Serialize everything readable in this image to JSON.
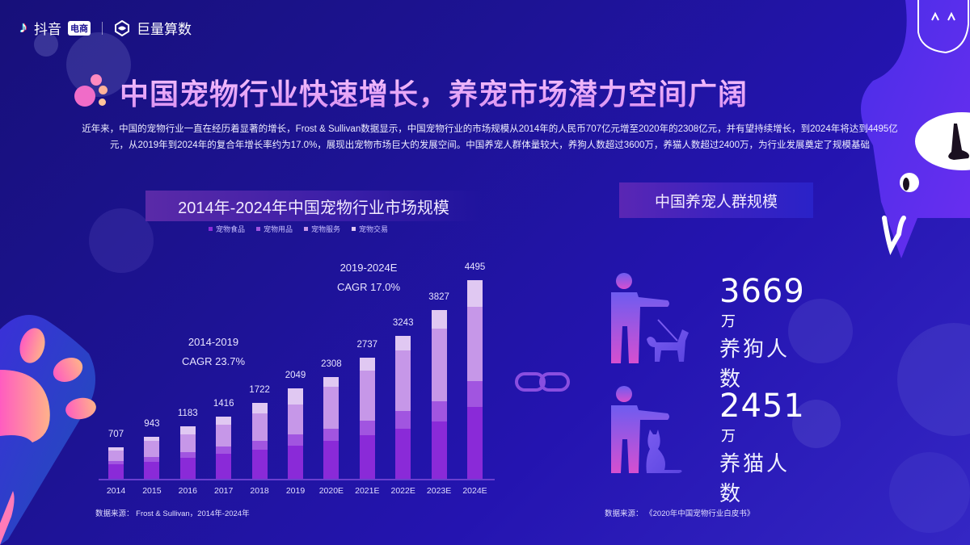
{
  "brand": {
    "douyin": "抖音",
    "dianshang": "电商",
    "juliang": "巨量算数"
  },
  "headline": "中国宠物行业快速增长，养宠市场潜力空间广阔",
  "intro": "近年来，中国的宠物行业一直在经历着显著的增长，Frost & Sullivan数据显示，中国宠物行业的市场规模从2014年的人民币707亿元增至2020年的2308亿元，并有望持续增长，到2024年将达到4495亿元，从2019年到2024年的复合年增长率约为17.0%，展现出宠物市场巨大的发展空间。中国养宠人群体量较大，养狗人数超过3600万，养猫人数超过2400万，为行业发展奠定了规模基础",
  "colors": {
    "food": "#8a2ad8",
    "supplies": "#a155e0",
    "services": "#c697e8",
    "trading": "#e0c8f2",
    "background": "#1d1394"
  },
  "chart_data": {
    "type": "bar",
    "stacked": true,
    "title": "2014年-2024年中国宠物行业市场规模",
    "xlabel": "",
    "ylabel": "",
    "unit": "亿元",
    "categories": [
      "2014",
      "2015",
      "2016",
      "2017",
      "2018",
      "2019",
      "2020E",
      "2021E",
      "2022E",
      "2023E",
      "2024E"
    ],
    "totals": [
      707,
      943,
      1183,
      1416,
      1722,
      2049,
      2308,
      2737,
      3243,
      3827,
      4495
    ],
    "series": [
      {
        "name": "宠物食品",
        "values": [
          320,
          390,
          480,
          560,
          650,
          750,
          850,
          990,
          1130,
          1290,
          1630
        ]
      },
      {
        "name": "宠物用品",
        "values": [
          90,
          110,
          130,
          170,
          210,
          250,
          280,
          330,
          400,
          470,
          580
        ]
      },
      {
        "name": "宠物服务",
        "values": [
          230,
          360,
          390,
          500,
          620,
          690,
          950,
          1120,
          1370,
          1640,
          1690
        ]
      },
      {
        "name": "宠物交易",
        "values": [
          67,
          83,
          183,
          186,
          242,
          359,
          228,
          297,
          343,
          427,
          595
        ]
      }
    ],
    "annotations": [
      {
        "period": "2014-2019",
        "text": "CAGR 23.7%"
      },
      {
        "period": "2019-2024E",
        "text": "CAGR 17.0%"
      }
    ],
    "ylim": [
      0,
      4500
    ],
    "grid": false,
    "legend_position": "top"
  },
  "chart_source": "数据来源：  Frost & Sullivan，2014年-2024年",
  "population": {
    "title": "中国养宠人群规模",
    "dog": {
      "value": "3669",
      "unit": "万",
      "label": "养狗人数"
    },
    "cat": {
      "value": "2451",
      "unit": "万",
      "label": "养猫人数"
    },
    "source": "数据来源：  《2020年中国宠物行业白皮书》"
  }
}
